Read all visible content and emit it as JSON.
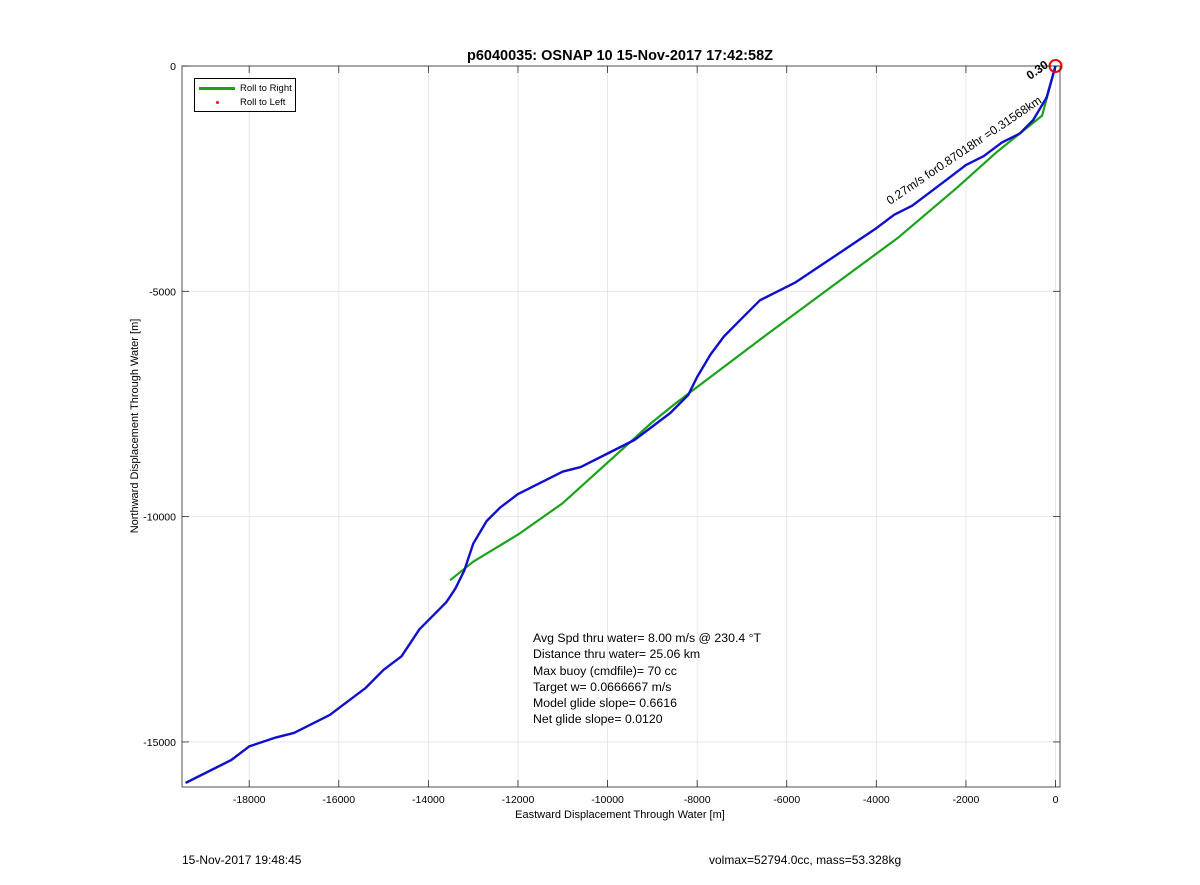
{
  "chart_data": {
    "type": "line",
    "title": "p6040035: OSNAP 10 15-Nov-2017 17:42:58Z",
    "xlabel": "Eastward Displacement Through Water [m]",
    "ylabel": "Northward Displacement Through Water [m]",
    "xlim": [
      -19500,
      100
    ],
    "ylim": [
      -16000,
      0
    ],
    "xticks": [
      -18000,
      -16000,
      -14000,
      -12000,
      -10000,
      -8000,
      -6000,
      -4000,
      -2000,
      0
    ],
    "yticks": [
      0,
      -5000,
      -10000,
      -15000
    ],
    "grid": true,
    "legend_position": "top-left",
    "series": [
      {
        "name": "Roll to Right",
        "color": "#1aa31a",
        "x": [
          0,
          -300,
          -1300,
          -2200,
          -3500,
          -5000,
          -6500,
          -8100,
          -8500,
          -9000,
          -10000,
          -11000,
          -12000,
          -13000,
          -13500
        ],
        "y": [
          0,
          -1100,
          -1900,
          -2700,
          -3800,
          -4900,
          -6000,
          -7200,
          -7500,
          -7900,
          -8800,
          -9700,
          -10400,
          -11000,
          -11400
        ]
      },
      {
        "name": "Roll to Left",
        "color": "#ff0000",
        "x": [],
        "y": []
      },
      {
        "name": "",
        "color": "#1010cc",
        "x": [
          0,
          -200,
          -500,
          -800,
          -1200,
          -1600,
          -2000,
          -2400,
          -2800,
          -3200,
          -3600,
          -4000,
          -4600,
          -5200,
          -5800,
          -6200,
          -6600,
          -7000,
          -7400,
          -7700,
          -8000,
          -8200,
          -8600,
          -9000,
          -9400,
          -10000,
          -10600,
          -11000,
          -11600,
          -12000,
          -12400,
          -12700,
          -13000,
          -13200,
          -13400,
          -13600,
          -13800,
          -14200,
          -14400,
          -14600,
          -15000,
          -15400,
          -15800,
          -16200,
          -16600,
          -17000,
          -17400,
          -18000,
          -18400,
          -18800,
          -19200,
          -19400
        ],
        "y": [
          0,
          -700,
          -1200,
          -1500,
          -1700,
          -2000,
          -2200,
          -2500,
          -2800,
          -3100,
          -3300,
          -3600,
          -4000,
          -4400,
          -4800,
          -5000,
          -5200,
          -5600,
          -6000,
          -6400,
          -6900,
          -7300,
          -7700,
          -8000,
          -8300,
          -8600,
          -8900,
          -9000,
          -9300,
          -9500,
          -9800,
          -10100,
          -10600,
          -11200,
          -11600,
          -11900,
          -12100,
          -12500,
          -12800,
          -13100,
          -13400,
          -13800,
          -14100,
          -14400,
          -14600,
          -14800,
          -14900,
          -15100,
          -15400,
          -15600,
          -15800,
          -15900
        ]
      }
    ],
    "endpoint_marker": {
      "x": 0,
      "y": 0,
      "color": "#ff0000",
      "shape": "circle"
    },
    "segment_annotation": "0.27m/s for0.87018hr =0.31568km",
    "annotation_stack": "0.30"
  },
  "stats": {
    "line1": "Avg Spd thru water=  8.00 m/s @ 230.4 °T",
    "line2": "Distance thru water= 25.06 km",
    "line3": "Max buoy (cmdfile)= 70 cc",
    "line4": "Target w= 0.0666667 m/s",
    "line5": "Model glide slope= 0.6616",
    "line6": "Net glide slope= 0.0120"
  },
  "footer": {
    "left": "15-Nov-2017 19:48:45",
    "right": "volmax=52794.0cc, mass=53.328kg"
  }
}
